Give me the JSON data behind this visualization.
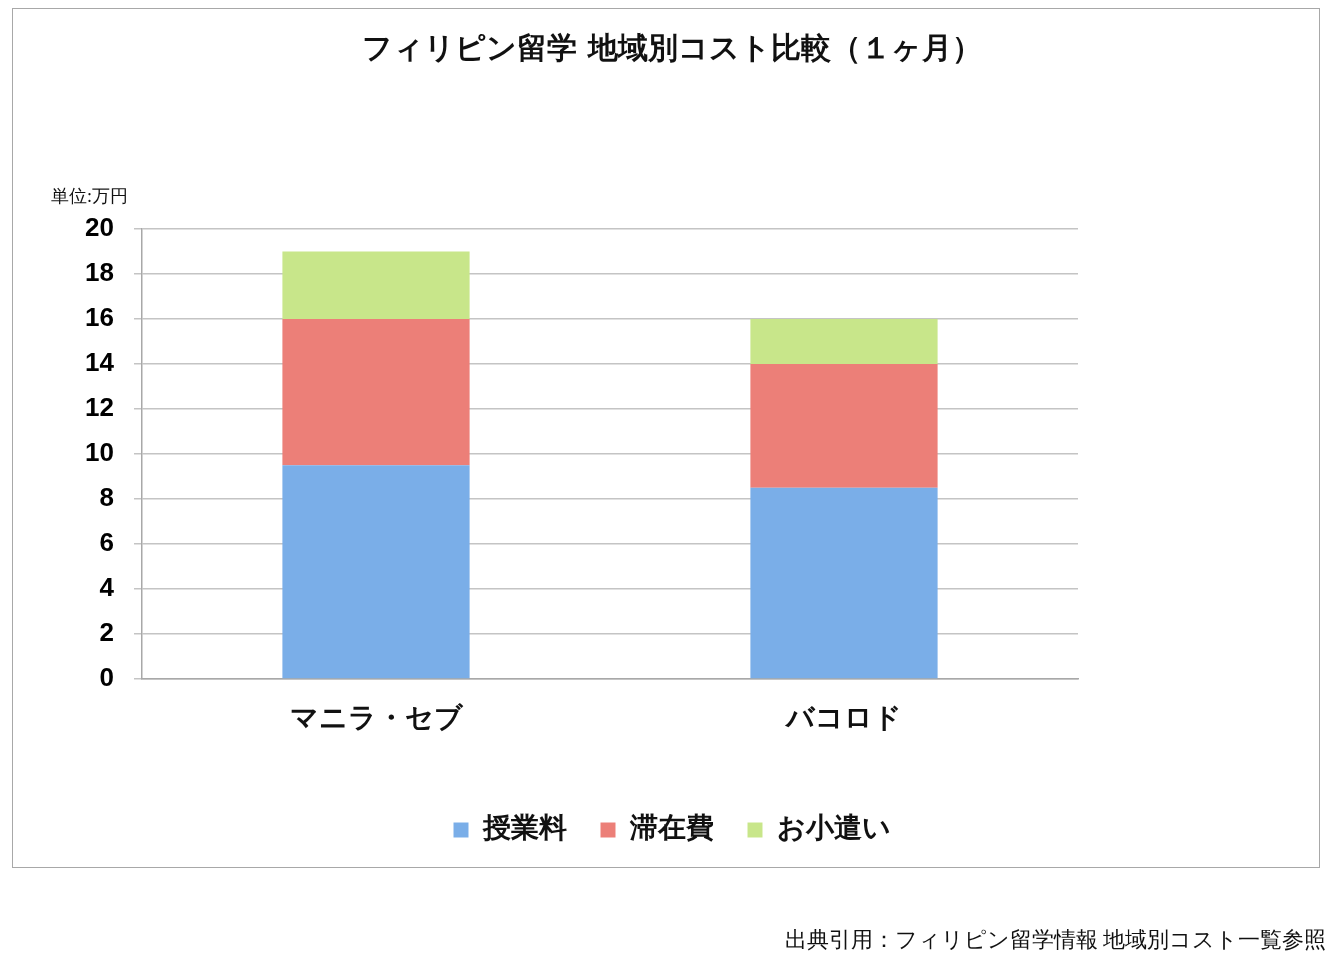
{
  "chart_data": {
    "type": "bar",
    "title": "フィリピン留学 地域別コスト比較（１ヶ月）",
    "categories": [
      "マニラ・セブ",
      "バコロド"
    ],
    "series": [
      {
        "name": "授業料",
        "color": "#7aaee8",
        "values": [
          9.5,
          8.5
        ]
      },
      {
        "name": "滞在費",
        "color": "#ec7f78",
        "values": [
          6.5,
          5.5
        ]
      },
      {
        "name": "お小遣い",
        "color": "#c8e68a",
        "values": [
          3,
          2
        ]
      }
    ],
    "stacked": true,
    "ylim": [
      0,
      20
    ],
    "yticks": [
      0,
      2,
      4,
      6,
      8,
      10,
      12,
      14,
      16,
      18,
      20
    ],
    "grid": "y",
    "legend": "bottom",
    "annotations": [
      "単位:万円",
      "出典引用：フィリピン留学情報 地域別コスト一覧参照"
    ]
  }
}
